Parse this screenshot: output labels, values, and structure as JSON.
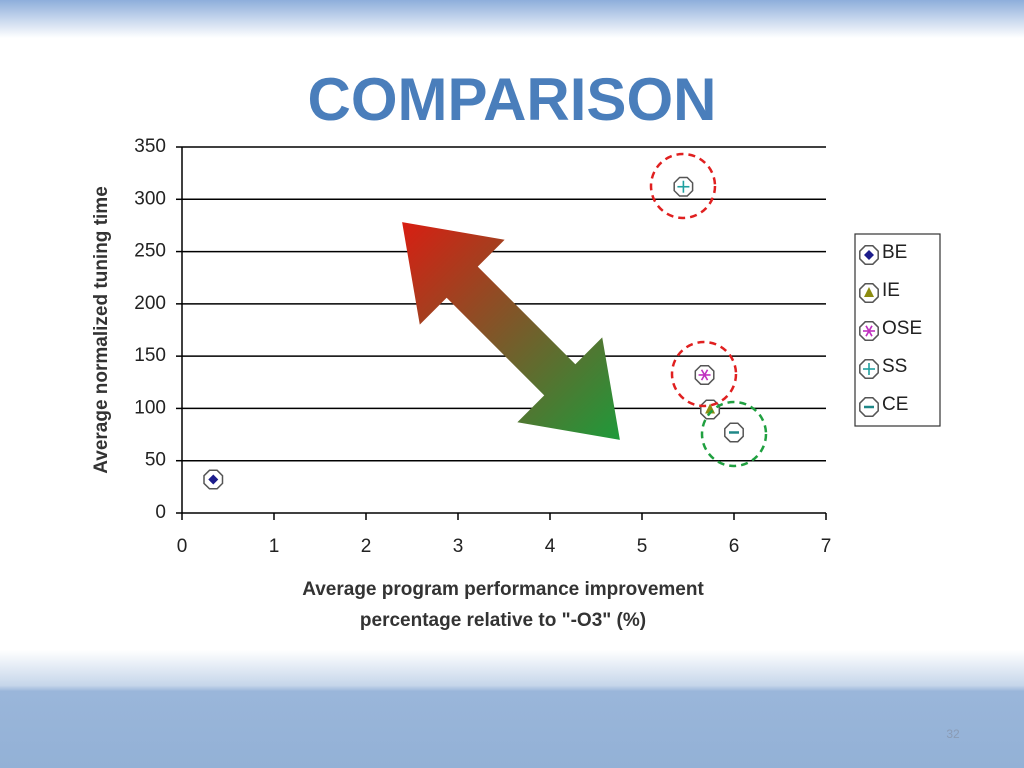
{
  "slide": {
    "title": "COMPARISON",
    "number": "32"
  },
  "chart_data": {
    "type": "scatter",
    "xlabel": [
      "Average program performance improvement",
      "percentage relative to \"-O3\" (%)"
    ],
    "ylabel": "Average normalized tuning time",
    "xlim": [
      0,
      7
    ],
    "xticks": [
      0,
      1,
      2,
      3,
      4,
      5,
      6,
      7
    ],
    "ylim": [
      0,
      350
    ],
    "yticks": [
      0,
      50,
      100,
      150,
      200,
      250,
      300,
      350
    ],
    "grid": true,
    "legend": "right",
    "series": [
      {
        "name": "BE",
        "color": "#1c1c8c",
        "marker": "diamond",
        "x": [
          0.34
        ],
        "values": [
          32
        ]
      },
      {
        "name": "IE",
        "color": "#8c8c10",
        "marker": "triangle",
        "x": [
          5.74
        ],
        "values": [
          99
        ]
      },
      {
        "name": "OSE",
        "color": "#c030c0",
        "marker": "asterisk",
        "x": [
          5.68
        ],
        "values": [
          132
        ]
      },
      {
        "name": "SS",
        "color": "#20a0a0",
        "marker": "plus",
        "x": [
          5.45
        ],
        "values": [
          312
        ]
      },
      {
        "name": "CE",
        "color": "#208888",
        "marker": "minus",
        "x": [
          6.0
        ],
        "values": [
          77
        ]
      }
    ]
  }
}
